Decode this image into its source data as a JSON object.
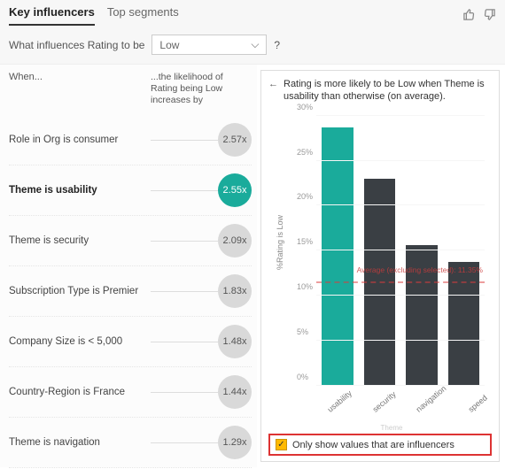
{
  "header": {
    "tabs": [
      {
        "label": "Key influencers",
        "active": true
      },
      {
        "label": "Top segments",
        "active": false
      }
    ],
    "thumbs_up": "👍",
    "thumbs_down": "👎"
  },
  "question": {
    "prefix": "What influences Rating to be",
    "dropdown_value": "Low",
    "help": "?"
  },
  "left_panel": {
    "col1_header": "When...",
    "col2_header": "...the likelihood of Rating being Low increases by",
    "factors": [
      {
        "label": "Role in Org is consumer",
        "value": "2.57x",
        "selected": false
      },
      {
        "label": "Theme is usability",
        "value": "2.55x",
        "selected": true
      },
      {
        "label": "Theme is security",
        "value": "2.09x",
        "selected": false
      },
      {
        "label": "Subscription Type is Premier",
        "value": "1.83x",
        "selected": false
      },
      {
        "label": "Company Size is < 5,000",
        "value": "1.48x",
        "selected": false
      },
      {
        "label": "Country-Region is France",
        "value": "1.44x",
        "selected": false
      },
      {
        "label": "Theme is navigation",
        "value": "1.29x",
        "selected": false
      }
    ]
  },
  "right_panel": {
    "back_arrow": "←",
    "title": "Rating is more likely to be Low when Theme is usability than otherwise (on average).",
    "chart": {
      "type": "bar",
      "y_label": "%Rating is Low",
      "x_label": "Theme",
      "y_max": 30,
      "y_ticks": [
        "0%",
        "5%",
        "10%",
        "15%",
        "20%",
        "25%",
        "30%"
      ],
      "y_tick_values": [
        0,
        5,
        10,
        15,
        20,
        25,
        30
      ],
      "categories": [
        "usability",
        "security",
        "navigation",
        "speed"
      ],
      "values": [
        28.7,
        23.0,
        15.6,
        13.8
      ],
      "bar_colors": [
        "#1aab9b",
        "#3a3f44",
        "#3a3f44",
        "#3a3f44"
      ],
      "average_value": 11.35,
      "average_label": "Average (excluding selected): 11.35%",
      "average_color": "rgba(220,60,60,0.5)",
      "background_color": "#ffffff"
    },
    "checkbox": {
      "checked": true,
      "label": "Only show values that are influencers"
    }
  }
}
